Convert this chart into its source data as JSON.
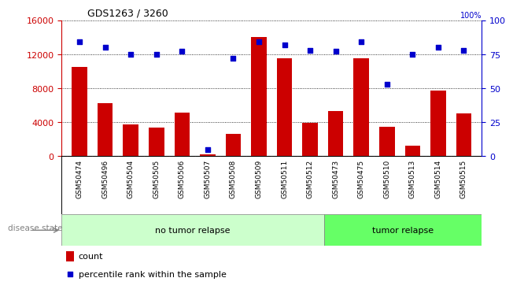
{
  "title": "GDS1263 / 3260",
  "categories": [
    "GSM50474",
    "GSM50496",
    "GSM50504",
    "GSM50505",
    "GSM50506",
    "GSM50507",
    "GSM50508",
    "GSM50509",
    "GSM50511",
    "GSM50512",
    "GSM50473",
    "GSM50475",
    "GSM50510",
    "GSM50513",
    "GSM50514",
    "GSM50515"
  ],
  "counts": [
    10500,
    6200,
    3700,
    3400,
    5100,
    200,
    2600,
    14000,
    11500,
    3900,
    5300,
    11500,
    3500,
    1200,
    7700,
    5000
  ],
  "percentiles": [
    84,
    80,
    75,
    75,
    77,
    5,
    72,
    84,
    82,
    78,
    77,
    84,
    53,
    75,
    80,
    78
  ],
  "no_tumor_count": 10,
  "tumor_count": 6,
  "ylim_left": [
    0,
    16000
  ],
  "ylim_right": [
    0,
    100
  ],
  "yticks_left": [
    0,
    4000,
    8000,
    12000,
    16000
  ],
  "yticks_right": [
    0,
    25,
    50,
    75,
    100
  ],
  "bar_color": "#cc0000",
  "dot_color": "#0000cc",
  "no_tumor_color": "#ccffcc",
  "tumor_color": "#66ff66",
  "xlabel_bg": "#d8d8d8",
  "disease_label": "disease state",
  "no_tumor_label": "no tumor relapse",
  "tumor_label": "tumor relapse",
  "legend_count": "count",
  "legend_percentile": "percentile rank within the sample"
}
